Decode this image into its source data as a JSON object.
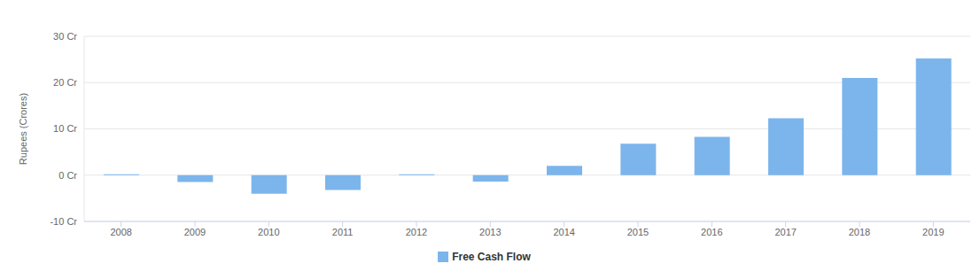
{
  "chart_data": {
    "type": "bar",
    "y_label": "Rupees (Crores)",
    "categories": [
      "2008",
      "2009",
      "2010",
      "2011",
      "2012",
      "2013",
      "2014",
      "2015",
      "2016",
      "2017",
      "2018",
      "2019"
    ],
    "series": [
      {
        "name": "Free Cash Flow",
        "color": "#7cb5ec",
        "values": [
          0.2,
          -1.5,
          -4,
          -3.2,
          0.2,
          -1.4,
          2,
          6.8,
          8.3,
          12.3,
          21,
          25.2
        ]
      }
    ],
    "ylim": [
      -10,
      30
    ],
    "yticks": [
      {
        "value": -10,
        "label": "-10 Cr"
      },
      {
        "value": 0,
        "label": "0 Cr"
      },
      {
        "value": 10,
        "label": "10 Cr"
      },
      {
        "value": 20,
        "label": "20 Cr"
      },
      {
        "value": 30,
        "label": "30 Cr"
      }
    ],
    "grid": true,
    "legend": "bottom"
  }
}
